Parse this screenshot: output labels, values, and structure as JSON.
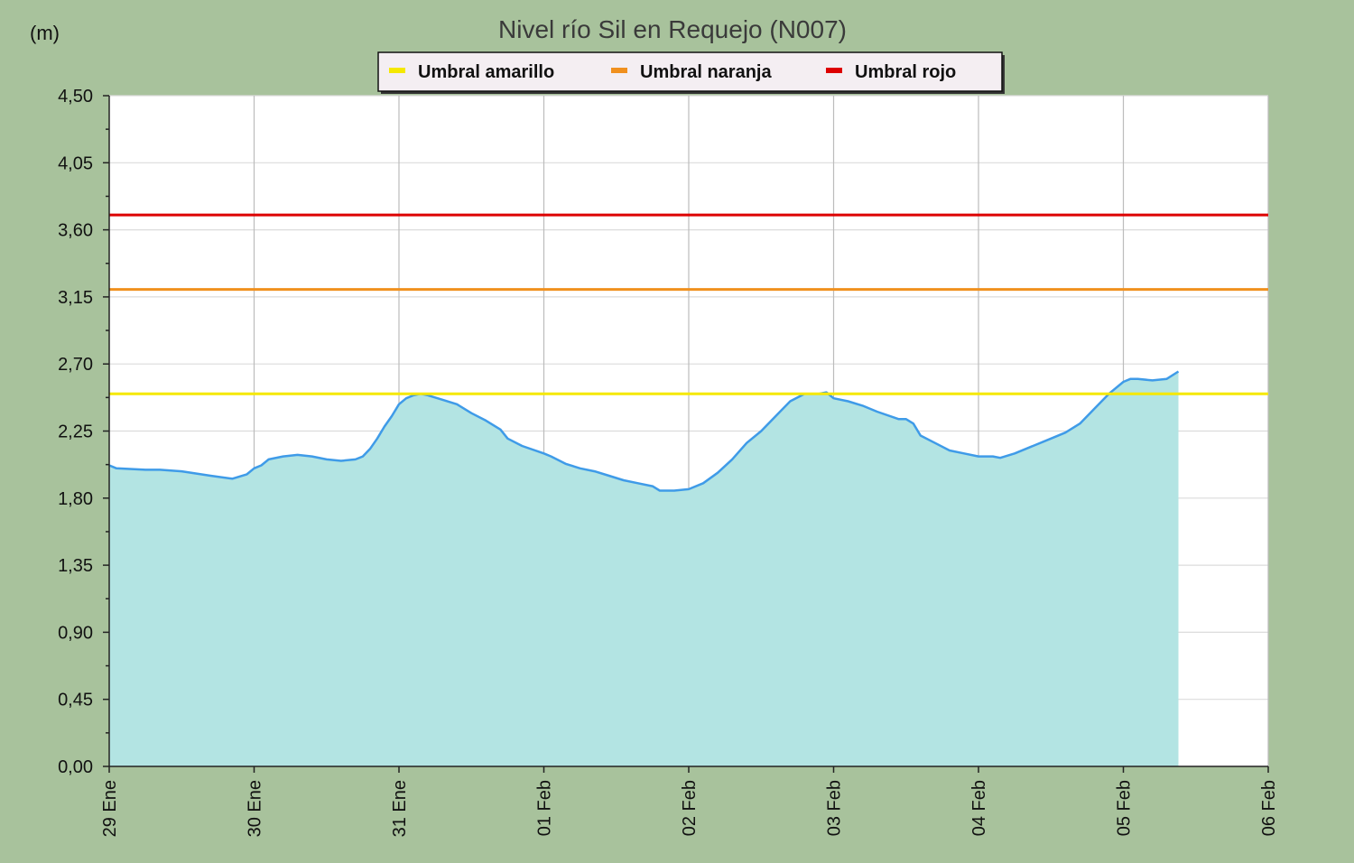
{
  "chart_data": {
    "type": "area",
    "title": "Nivel río Sil en Requejo  (N007)",
    "unit_label": "(m)",
    "ylim": [
      0,
      4.5
    ],
    "y_ticks": [
      0,
      0.45,
      0.9,
      1.35,
      1.8,
      2.25,
      2.7,
      3.15,
      3.6,
      4.05,
      4.5
    ],
    "y_tick_labels": [
      "0,00",
      "0,45",
      "0,90",
      "1,35",
      "1,80",
      "2,25",
      "2,70",
      "3,15",
      "3,60",
      "4,05",
      "4,50"
    ],
    "xlim": [
      0,
      8
    ],
    "x_ticks": [
      0,
      1,
      2,
      3,
      4,
      5,
      6,
      7,
      8
    ],
    "x_tick_labels": [
      "29 Ene",
      "30 Ene",
      "31 Ene",
      "01 Feb",
      "02 Feb",
      "03 Feb",
      "04 Feb",
      "05 Feb",
      "06 Feb"
    ],
    "grid": true,
    "legend_position": "top-center",
    "thresholds": [
      {
        "name": "Umbral amarillo",
        "value": 2.5,
        "color": "#f5e800"
      },
      {
        "name": "Umbral naranja",
        "value": 3.2,
        "color": "#f0901e"
      },
      {
        "name": "Umbral rojo",
        "value": 3.7,
        "color": "#dd0000"
      }
    ],
    "series": [
      {
        "color": "#3f9be8",
        "fill": "#b3e4e3",
        "x": [
          0.0,
          0.05,
          0.25,
          0.35,
          0.5,
          0.7,
          0.85,
          0.95,
          1.0,
          1.05,
          1.1,
          1.2,
          1.3,
          1.4,
          1.5,
          1.6,
          1.7,
          1.75,
          1.8,
          1.85,
          1.9,
          1.95,
          2.0,
          2.05,
          2.1,
          2.15,
          2.2,
          2.3,
          2.4,
          2.5,
          2.6,
          2.7,
          2.75,
          2.85,
          3.0,
          3.05,
          3.15,
          3.25,
          3.35,
          3.45,
          3.55,
          3.65,
          3.75,
          3.8,
          3.9,
          4.0,
          4.1,
          4.2,
          4.3,
          4.4,
          4.5,
          4.6,
          4.7,
          4.8,
          4.9,
          4.95,
          5.0,
          5.1,
          5.2,
          5.3,
          5.45,
          5.5,
          5.55,
          5.6,
          5.7,
          5.8,
          5.9,
          6.0,
          6.1,
          6.15,
          6.25,
          6.35,
          6.5,
          6.6,
          6.7,
          6.8,
          6.9,
          7.0,
          7.05,
          7.1,
          7.2,
          7.3,
          7.38
        ],
        "y": [
          2.02,
          2.0,
          1.99,
          1.99,
          1.98,
          1.95,
          1.93,
          1.96,
          2.0,
          2.02,
          2.06,
          2.08,
          2.09,
          2.08,
          2.06,
          2.05,
          2.06,
          2.08,
          2.13,
          2.2,
          2.28,
          2.35,
          2.43,
          2.47,
          2.49,
          2.5,
          2.49,
          2.46,
          2.43,
          2.37,
          2.32,
          2.26,
          2.2,
          2.15,
          2.1,
          2.08,
          2.03,
          2.0,
          1.98,
          1.95,
          1.92,
          1.9,
          1.88,
          1.85,
          1.85,
          1.86,
          1.9,
          1.97,
          2.06,
          2.17,
          2.25,
          2.35,
          2.45,
          2.5,
          2.5,
          2.51,
          2.47,
          2.45,
          2.42,
          2.38,
          2.33,
          2.33,
          2.3,
          2.22,
          2.17,
          2.12,
          2.1,
          2.08,
          2.08,
          2.07,
          2.1,
          2.14,
          2.2,
          2.24,
          2.3,
          2.4,
          2.5,
          2.58,
          2.6,
          2.6,
          2.59,
          2.6,
          2.65
        ]
      }
    ]
  }
}
